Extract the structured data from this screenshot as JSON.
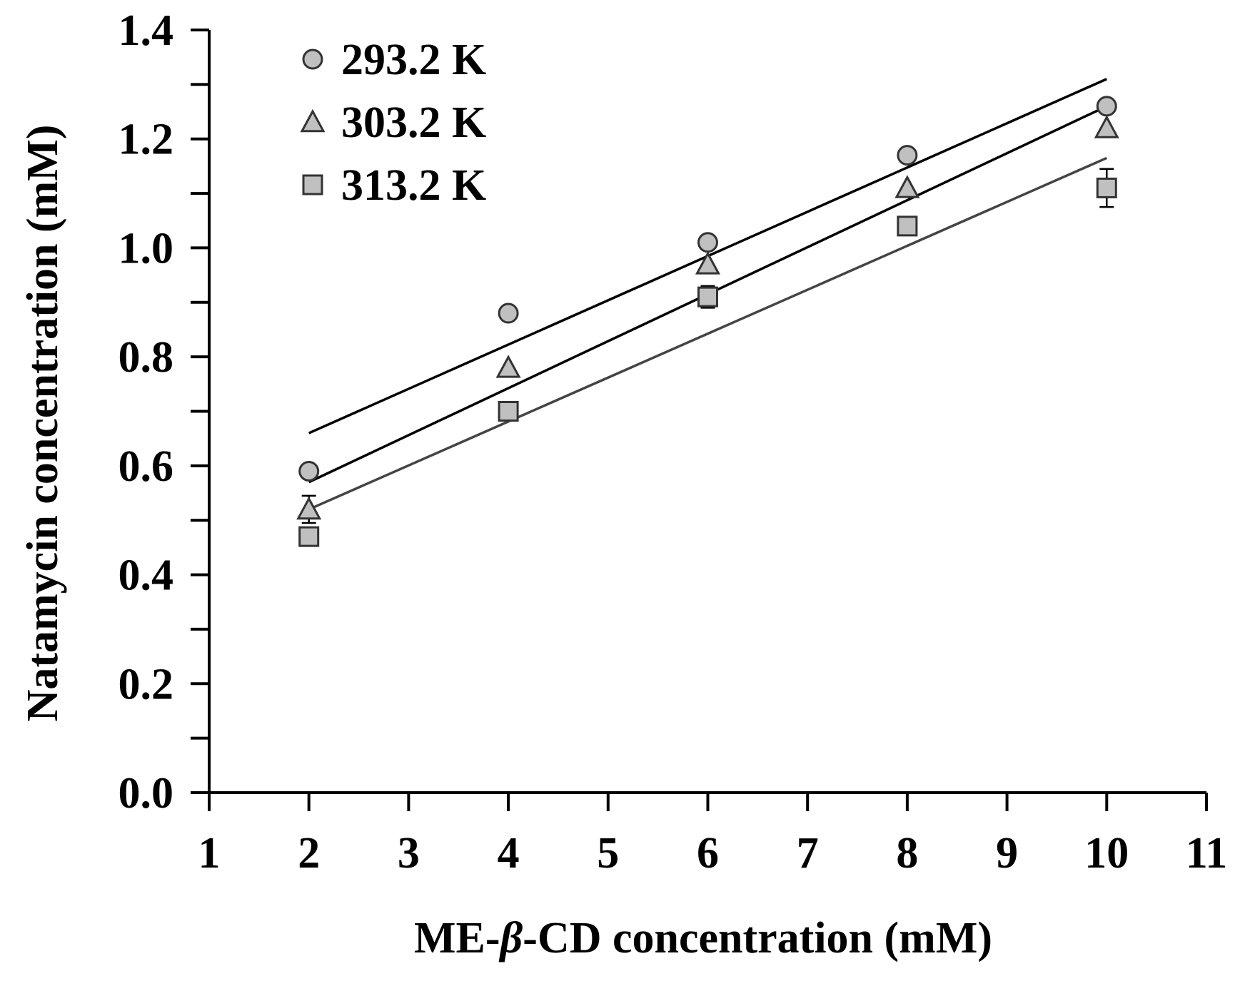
{
  "chart_data": {
    "type": "scatter",
    "title": "",
    "xlabel": "ME-β-CD concentration (mM)",
    "xlabel_parts": {
      "prefix": "ME-",
      "italic": "β",
      "suffix": "-CD concentration (mM)"
    },
    "ylabel": "Natamycin concentration (mM)",
    "xlim": [
      1,
      11
    ],
    "ylim": [
      0.0,
      1.4
    ],
    "x_ticks": [
      1,
      2,
      3,
      4,
      5,
      6,
      7,
      8,
      9,
      10,
      11
    ],
    "x_tick_labels": [
      "1",
      "2",
      "3",
      "4",
      "5",
      "6",
      "7",
      "8",
      "9",
      "10",
      "11"
    ],
    "y_ticks": [
      0.0,
      0.2,
      0.4,
      0.6,
      0.8,
      1.0,
      1.2,
      1.4
    ],
    "y_tick_labels": [
      "0.0",
      "0.2",
      "0.4",
      "0.6",
      "0.8",
      "1.0",
      "1.2",
      "1.4"
    ],
    "grid": false,
    "legend_position": "top-left",
    "series": [
      {
        "name": "293.2 K",
        "marker": "circle",
        "x": [
          2,
          4,
          6,
          8,
          10
        ],
        "values": [
          0.59,
          0.88,
          1.01,
          1.17,
          1.26
        ],
        "errors": [
          0,
          0,
          0,
          0,
          0
        ],
        "fit": {
          "x": [
            2,
            10
          ],
          "y": [
            0.66,
            1.31
          ]
        },
        "fit_color": "#000000"
      },
      {
        "name": "303.2 K",
        "marker": "triangle",
        "x": [
          2,
          4,
          6,
          8,
          10
        ],
        "values": [
          0.52,
          0.78,
          0.97,
          1.11,
          1.22
        ],
        "errors": [
          0.025,
          0,
          0,
          0,
          0
        ],
        "fit": {
          "x": [
            2,
            10
          ],
          "y": [
            0.57,
            1.26
          ]
        },
        "fit_color": "#000000"
      },
      {
        "name": "313.2 K",
        "marker": "square",
        "x": [
          2,
          4,
          6,
          8,
          10
        ],
        "values": [
          0.47,
          0.7,
          0.91,
          1.04,
          1.11
        ],
        "errors": [
          0,
          0,
          0.02,
          0,
          0.035
        ],
        "fit": {
          "x": [
            2,
            10
          ],
          "y": [
            0.52,
            1.165
          ]
        },
        "fit_color": "#444444"
      }
    ]
  },
  "colors": {
    "marker_fill": "#c0c0c0",
    "marker_stroke": "#333333",
    "axis": "#000000"
  }
}
